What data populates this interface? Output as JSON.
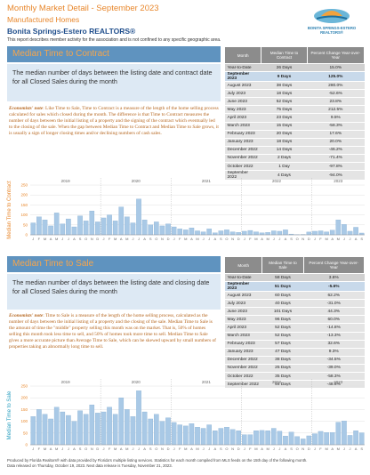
{
  "header": {
    "title": "Monthly Market Detail - September 2023",
    "subtitle": "Manufactured Homes",
    "organization": "Bonita Springs-Estero REALTORS®",
    "note": "This report describes member activity for the association and is not confined to any specific geographic area.",
    "logo": "BONITA SPRINGS-ESTERO REALTORS®"
  },
  "sections": [
    {
      "title": "Median Time to Contract",
      "description": "The median number of days between the listing date and contract date for all Closed Sales during the month",
      "note_label": "Economists' note",
      "note_text": ": Like Time to Sale, Time to Contract is a measure of the length of the home selling process calculated for sales which closed during the month. The difference is that Time to Contract measures the number of days between the initial listing of a property and the signing of the contract which eventually led to the closing of the sale. When the gap between Median Time to Contract and Median Time to Sale grows, it is usually a sign of longer closing times and/or declining numbers of cash sales.",
      "table": {
        "header": [
          "Month",
          "Median Time to Contract",
          "Percent Change Year-over-Year"
        ],
        "rows": [
          [
            "Year-to-Date",
            "26 Days",
            "15.0%"
          ],
          [
            "September 2023",
            "9 Days",
            "125.0%"
          ],
          [
            "August 2023",
            "38 Days",
            "280.0%"
          ],
          [
            "July 2023",
            "18 Days",
            "-52.6%"
          ],
          [
            "June 2023",
            "52 Days",
            "23.8%"
          ],
          [
            "May 2023",
            "75 Days",
            "212.5%"
          ],
          [
            "April 2023",
            "23 Days",
            "9.5%"
          ],
          [
            "March 2023",
            "15 Days",
            "-58.3%"
          ],
          [
            "February 2023",
            "20 Days",
            "17.6%"
          ],
          [
            "January 2023",
            "18 Days",
            "20.0%"
          ],
          [
            "December 2022",
            "14 Days",
            "-46.2%"
          ],
          [
            "November 2022",
            "2 Days",
            "-71.4%"
          ],
          [
            "October 2022",
            "1 Day",
            "-97.8%"
          ],
          [
            "September 2022",
            "4 Days",
            "-94.0%"
          ]
        ]
      }
    },
    {
      "title": "Median Time to Sale",
      "description": "The median number of days between the listing date and closing date for all Closed Sales during the month",
      "note_label": "Economists' note",
      "note_text": ": Time to Sale is a measure of the length of the home selling process, calculated as the number of days between the initial listing of a property and the closing of the sale. Median Time to Sale is the amount of time the \"middle\" property selling this month was on the market. That is, 50% of homes selling this month took less time to sell, and 50% of homes took more time to sell. Median Time to Sale gives a more accurate picture than Average Time to Sale, which can be skewed upward by small numbers of properties taking an abnormally long time to sell.",
      "table": {
        "header": [
          "Month",
          "Median Time to Sale",
          "Percent Change Year-over-Year"
        ],
        "rows": [
          [
            "Year-to-Date",
            "58 Days",
            "3.6%"
          ],
          [
            "September 2023",
            "51 Days",
            "-5.6%"
          ],
          [
            "August 2023",
            "60 Days",
            "62.2%"
          ],
          [
            "July 2023",
            "40 Days",
            "-31.0%"
          ],
          [
            "June 2023",
            "101 Days",
            "44.3%"
          ],
          [
            "May 2023",
            "96 Days",
            "60.0%"
          ],
          [
            "April 2023",
            "52 Days",
            "-14.8%"
          ],
          [
            "March 2023",
            "52 Days",
            "-13.3%"
          ],
          [
            "February 2023",
            "57 Days",
            "32.6%"
          ],
          [
            "January 2023",
            "47 Days",
            "9.3%"
          ],
          [
            "December 2022",
            "38 Days",
            "-34.5%"
          ],
          [
            "November 2022",
            "25 Days",
            "-39.0%"
          ],
          [
            "October 2022",
            "35 Days",
            "-58.3%"
          ],
          [
            "September 2022",
            "54 Days",
            "-48.6%"
          ]
        ]
      }
    }
  ],
  "chart_data": [
    {
      "type": "bar",
      "y_label": "Median Time to Contract",
      "label_color": "#e8872c",
      "color": "#a9c9e6",
      "ylim": [
        0,
        250
      ],
      "yticks": [
        0,
        50,
        100,
        150,
        200,
        250
      ],
      "grid": true,
      "groups": [
        "2019",
        "2020",
        "2021",
        "2022",
        "2023"
      ],
      "categories": [
        "J",
        "F",
        "M",
        "A",
        "M",
        "J",
        "J",
        "A",
        "S",
        "O",
        "N",
        "D",
        "J",
        "F",
        "M",
        "A",
        "M",
        "J",
        "J",
        "A",
        "S",
        "O",
        "N",
        "D",
        "J",
        "F",
        "M",
        "A",
        "M",
        "J",
        "J",
        "A",
        "S",
        "O",
        "N",
        "D",
        "J",
        "F",
        "M",
        "A",
        "M",
        "J",
        "J",
        "A",
        "S",
        "O",
        "N",
        "D",
        "J",
        "F",
        "M",
        "A",
        "M",
        "J",
        "J",
        "A",
        "S"
      ],
      "values": [
        60,
        90,
        75,
        45,
        110,
        55,
        80,
        40,
        95,
        70,
        120,
        65,
        85,
        100,
        70,
        140,
        90,
        60,
        180,
        75,
        50,
        65,
        45,
        55,
        40,
        30,
        25,
        35,
        20,
        15,
        30,
        10,
        20,
        25,
        15,
        12,
        18,
        22,
        15,
        10,
        12,
        20,
        18,
        25,
        4,
        1,
        2,
        14,
        18,
        20,
        15,
        23,
        75,
        52,
        18,
        38,
        9
      ]
    },
    {
      "type": "bar",
      "y_label": "Median Time to Sale",
      "label_color": "#2a9fc0",
      "color": "#a9c9e6",
      "ylim": [
        0,
        250
      ],
      "yticks": [
        0,
        50,
        100,
        150,
        200,
        250
      ],
      "grid": true,
      "groups": [
        "2019",
        "2020",
        "2021",
        "2022",
        "2023"
      ],
      "categories": [
        "J",
        "F",
        "M",
        "A",
        "M",
        "J",
        "J",
        "A",
        "S",
        "O",
        "N",
        "D",
        "J",
        "F",
        "M",
        "A",
        "M",
        "J",
        "J",
        "A",
        "S",
        "O",
        "N",
        "D",
        "J",
        "F",
        "M",
        "A",
        "M",
        "J",
        "J",
        "A",
        "S",
        "O",
        "N",
        "D",
        "J",
        "F",
        "M",
        "A",
        "M",
        "J",
        "J",
        "A",
        "S",
        "O",
        "N",
        "D",
        "J",
        "F",
        "M",
        "A",
        "M",
        "J",
        "J",
        "A",
        "S"
      ],
      "values": [
        120,
        150,
        130,
        110,
        160,
        140,
        125,
        100,
        145,
        130,
        170,
        135,
        140,
        160,
        130,
        200,
        150,
        120,
        230,
        140,
        110,
        130,
        100,
        115,
        95,
        85,
        80,
        90,
        75,
        70,
        85,
        60,
        70,
        75,
        65,
        60,
        43,
        43,
        60,
        61,
        60,
        70,
        58,
        37,
        54,
        35,
        25,
        38,
        47,
        57,
        52,
        52,
        96,
        101,
        40,
        60,
        51
      ]
    }
  ],
  "footer": {
    "line1": "Produced by Florida Realtors® with data provided by Florida's multiple listing services. Statistics for each month compiled from MLS feeds on the 15th day of the following month.",
    "line2": "Data released on Thursday, October 19, 2023. Next data release is Tuesday, November 21, 2023."
  }
}
